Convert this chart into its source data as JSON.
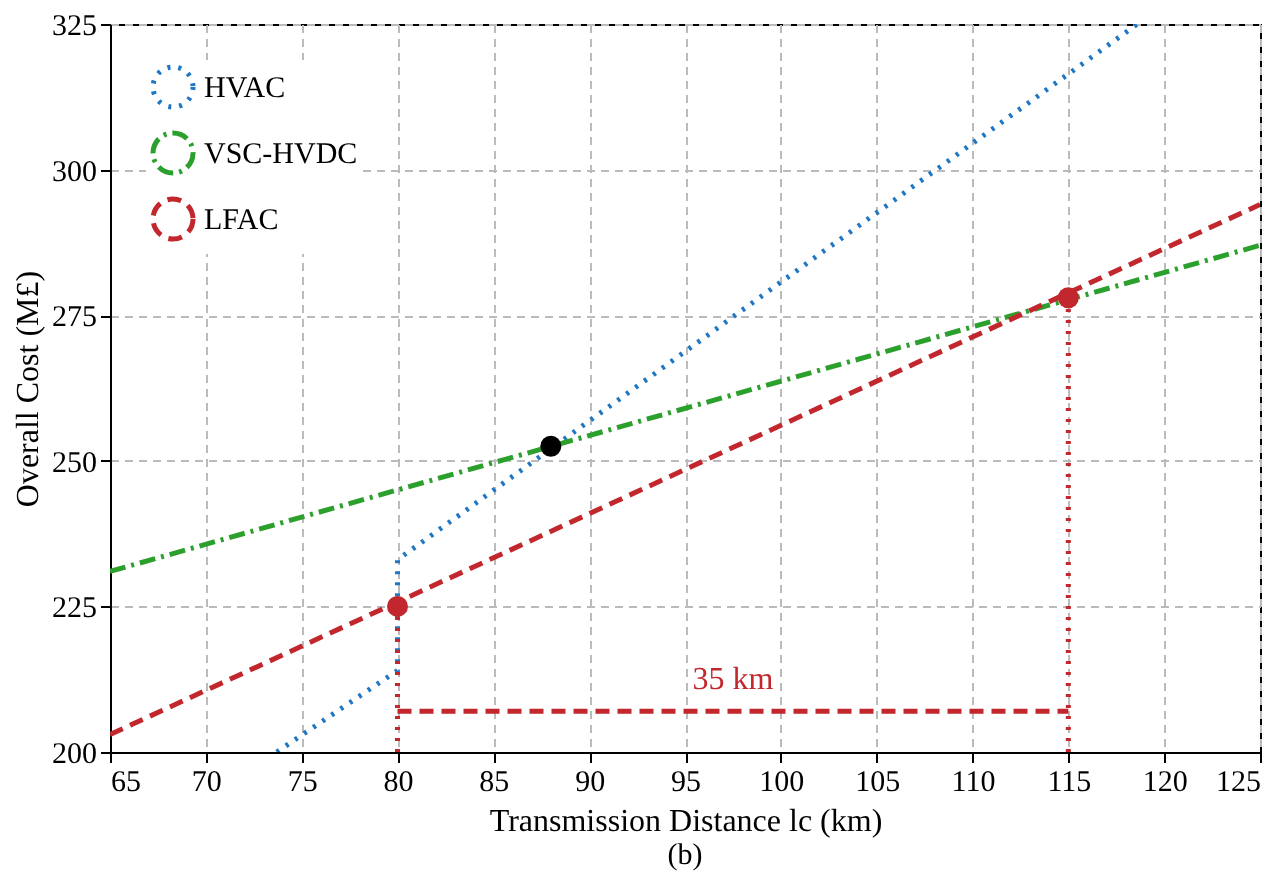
{
  "chart_data": {
    "type": "line",
    "xlabel": "Transmission Distance lc (km)",
    "ylabel": "Overall Cost (M£)",
    "xlim": [
      65,
      125
    ],
    "ylim": [
      200,
      325
    ],
    "xticks": [
      65,
      70,
      75,
      80,
      85,
      90,
      95,
      100,
      105,
      110,
      115,
      120,
      125
    ],
    "yticks": [
      200,
      225,
      250,
      275,
      300,
      325
    ],
    "grid": true,
    "legend": "top left",
    "series": [
      {
        "name": "HVAC",
        "color": "#1f77c4",
        "line_style": "dotted",
        "x": [
          73.7,
          80,
          80,
          118.6
        ],
        "values": [
          200,
          214,
          233,
          325
        ]
      },
      {
        "name": "VSC-HVDC",
        "color": "#2ca02c",
        "line_style": "dashdot",
        "x": [
          65,
          125
        ],
        "values": [
          231,
          287
        ]
      },
      {
        "name": "LFAC",
        "color": "#c1272d",
        "line_style": "dashed",
        "x": [
          65,
          125
        ],
        "values": [
          203,
          294
        ]
      },
      {
        "color": "#c1272d",
        "type": "line",
        "line_style": "dotted",
        "x": [
          80,
          80
        ],
        "values": [
          200,
          225
        ]
      },
      {
        "color": "#c1272d",
        "type": "line",
        "line_style": "dotted",
        "x": [
          115,
          115
        ],
        "values": [
          200,
          278
        ]
      },
      {
        "color": "#c1272d",
        "type": "line",
        "line_style": "dashed",
        "x": [
          80,
          115
        ],
        "values": [
          207,
          207
        ]
      },
      {
        "type": "scatter",
        "marker": "circle",
        "x": [
          88,
          80,
          115
        ],
        "values": [
          252.5,
          225,
          278
        ],
        "colors": [
          "#000000",
          "#c1272d",
          "#c1272d"
        ]
      }
    ],
    "annotations": [
      {
        "text": "35 km",
        "x": 97.5,
        "y": 207
      },
      "(b)"
    ]
  }
}
